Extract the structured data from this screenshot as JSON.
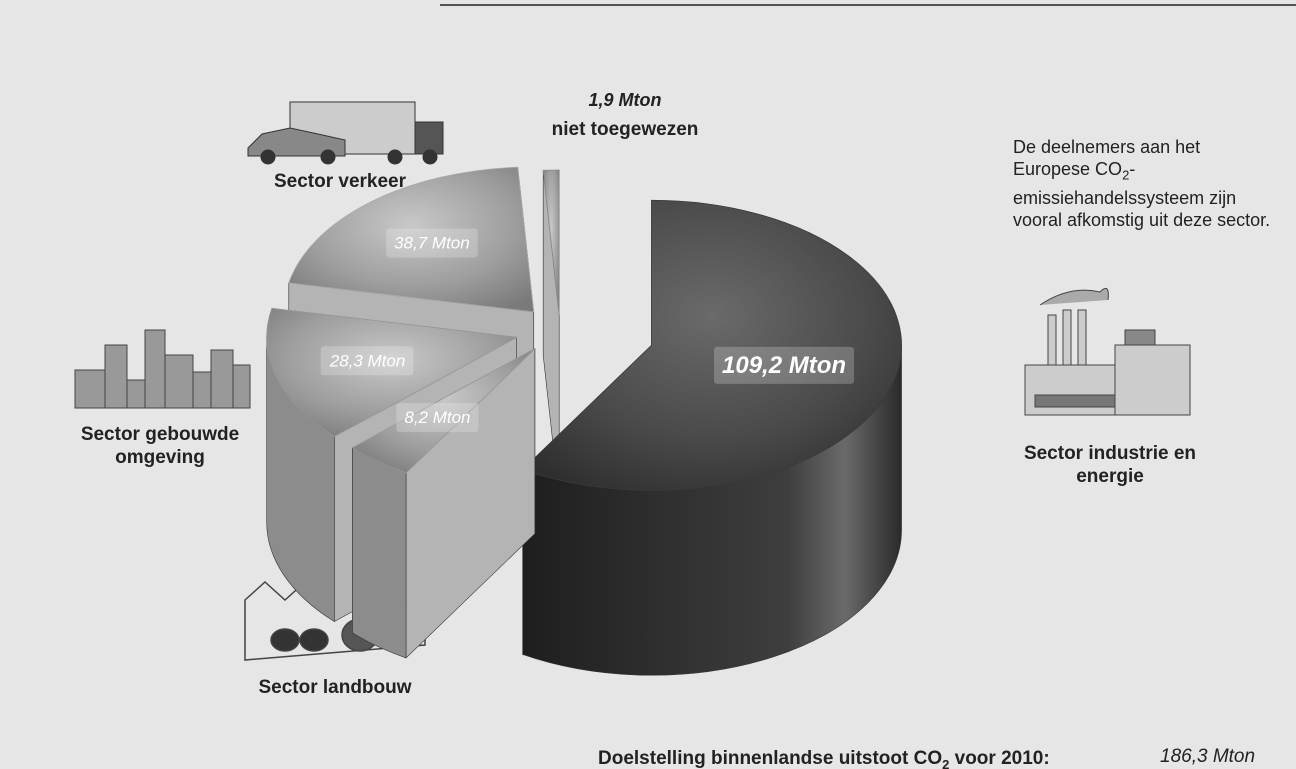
{
  "chart_data": {
    "type": "pie",
    "categories": [
      "Sector industrie en energie",
      "Sector landbouw",
      "Sector gebouwde omgeving",
      "Sector verkeer",
      "niet toegewezen"
    ],
    "values": [
      109.2,
      8.2,
      28.3,
      38.7,
      1.9
    ],
    "value_labels": [
      "109,2 Mton",
      "8,2 Mton",
      "28,3 Mton",
      "38,7 Mton",
      "1,9 Mton"
    ],
    "colors": [
      "#3a3a3a",
      "#9a9a9a",
      "#9a9a9a",
      "#a8a8a8",
      "#8a8a8a"
    ]
  },
  "note": [
    "De deelnemers aan het Europese CO",
    "2",
    "-emissiehandelssysteem zijn vooral afkomstig uit deze sector."
  ],
  "footer": {
    "text": [
      "Doelstelling binnenlandse uitstoot CO",
      "2",
      " voor 2010:"
    ],
    "total": "186,3 Mton"
  }
}
